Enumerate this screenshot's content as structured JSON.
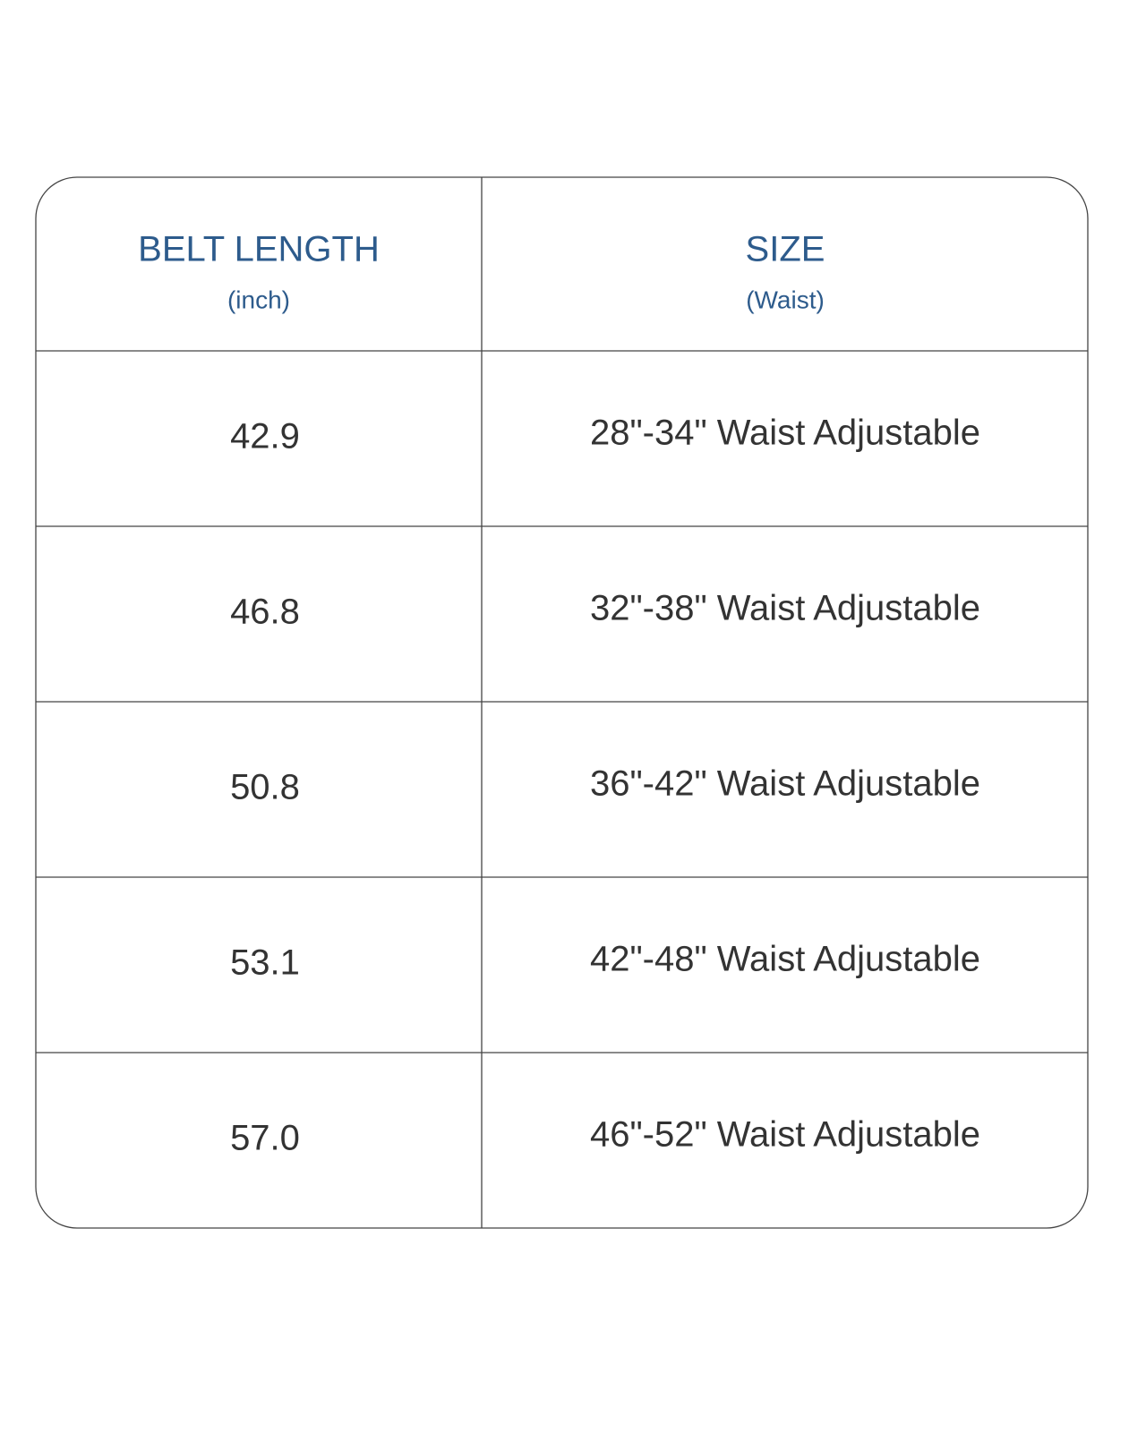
{
  "table": {
    "header": [
      {
        "title": "BELT LENGTH",
        "subtitle": "(inch)"
      },
      {
        "title": "SIZE",
        "subtitle": "(Waist)"
      }
    ],
    "rows": [
      [
        "42.9",
        "28\"-34\" Waist Adjustable"
      ],
      [
        "46.8",
        "32\"-38\" Waist Adjustable"
      ],
      [
        "50.8",
        "36\"-42\" Waist Adjustable"
      ],
      [
        "53.1",
        "42\"-48\" Waist Adjustable"
      ],
      [
        "57.0",
        "46\"-52\" Waist Adjustable"
      ]
    ]
  }
}
